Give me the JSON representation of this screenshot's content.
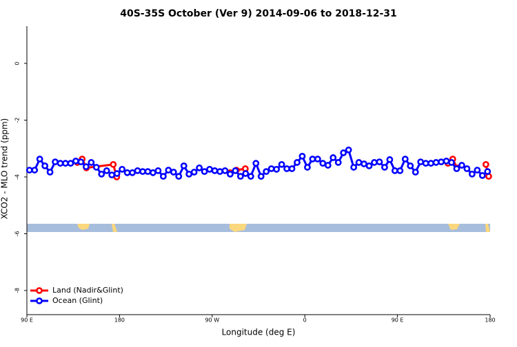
{
  "chart_data": {
    "type": "line",
    "title": "40S-35S October (Ver 9)   2014-09-06 to 2018-12-31",
    "x_label": "Longitude (deg E)",
    "y_label": "XCO2 - MLO trend (ppm)",
    "xlim": [
      90,
      540
    ],
    "ylim": [
      -8.85,
      1.31
    ],
    "xticks": [
      {
        "value": 90,
        "label": "90 E"
      },
      180,
      {
        "value": 270,
        "label": "90 W"
      },
      {
        "value": 360,
        "label": "0"
      },
      {
        "value": 450,
        "label": "90 E"
      },
      {
        "value": 540,
        "label": "180"
      }
    ],
    "yticks": [
      0,
      -2,
      -4,
      -6,
      -8
    ],
    "legend": "bottom-left",
    "series": [
      {
        "name": "Land (Nadir&Glint)",
        "color": "#ff0000",
        "x": [
          139.0,
          143.7,
          147.8,
          173.9,
          177.3,
          null,
          287.4,
          293.5,
          302.2,
          null,
          499.0,
          503.7,
          507.7,
          null,
          535.9,
          538.6
        ],
        "values": [
          -3.49,
          -3.37,
          -3.68,
          -3.56,
          -4.0,
          null,
          -3.85,
          -3.76,
          -3.71,
          null,
          -3.52,
          -3.37,
          -3.68,
          null,
          -3.56,
          -3.98
        ]
      },
      {
        "name": "Ocean (Glint)",
        "color": "#0000ff",
        "x": [
          92.5,
          97.5,
          102.5,
          107.5,
          112.5,
          117.5,
          122.5,
          127.5,
          132.5,
          137.5,
          142.5,
          147.5,
          152.5,
          157.5,
          162.5,
          167.5,
          172.5,
          177.5,
          182.5,
          187.5,
          192.5,
          197.5,
          202.5,
          207.5,
          212.5,
          217.5,
          222.5,
          227.5,
          232.5,
          237.5,
          242.5,
          247.5,
          252.5,
          257.5,
          262.5,
          267.5,
          272.5,
          277.5,
          282.5,
          287.5,
          292.5,
          297.5,
          302.5,
          307.5,
          312.5,
          317.5,
          322.5,
          327.5,
          332.5,
          337.5,
          342.5,
          347.5,
          352.5,
          357.5,
          362.5,
          367.5,
          372.5,
          377.5,
          382.5,
          387.5,
          392.5,
          397.5,
          402.5,
          407.5,
          412.5,
          417.5,
          422.5,
          427.5,
          432.5,
          437.5,
          442.5,
          447.5,
          452.5,
          457.5,
          462.5,
          467.5,
          472.5,
          477.5,
          482.5,
          487.5,
          492.5,
          497.5,
          502.5,
          507.5,
          512.5,
          517.5,
          522.5,
          527.5,
          532.5,
          537.5
        ],
        "values": [
          -3.76,
          -3.76,
          -3.37,
          -3.61,
          -3.83,
          -3.47,
          -3.52,
          -3.52,
          -3.52,
          -3.44,
          -3.47,
          -3.64,
          -3.49,
          -3.66,
          -3.9,
          -3.78,
          -3.93,
          -3.88,
          -3.73,
          -3.85,
          -3.85,
          -3.78,
          -3.81,
          -3.81,
          -3.85,
          -3.78,
          -3.98,
          -3.76,
          -3.83,
          -3.98,
          -3.61,
          -3.9,
          -3.83,
          -3.68,
          -3.81,
          -3.73,
          -3.78,
          -3.81,
          -3.78,
          -3.9,
          -3.78,
          -3.98,
          -3.88,
          -3.98,
          -3.52,
          -3.98,
          -3.81,
          -3.71,
          -3.73,
          -3.56,
          -3.71,
          -3.71,
          -3.49,
          -3.27,
          -3.66,
          -3.37,
          -3.37,
          -3.52,
          -3.59,
          -3.32,
          -3.49,
          -3.15,
          -3.05,
          -3.66,
          -3.49,
          -3.54,
          -3.61,
          -3.49,
          -3.47,
          -3.66,
          -3.39,
          -3.78,
          -3.78,
          -3.37,
          -3.61,
          -3.83,
          -3.47,
          -3.52,
          -3.52,
          -3.49,
          -3.47,
          -3.44,
          -3.49,
          -3.71,
          -3.59,
          -3.71,
          -3.9,
          -3.76,
          -3.95,
          -3.81
        ]
      }
    ]
  }
}
